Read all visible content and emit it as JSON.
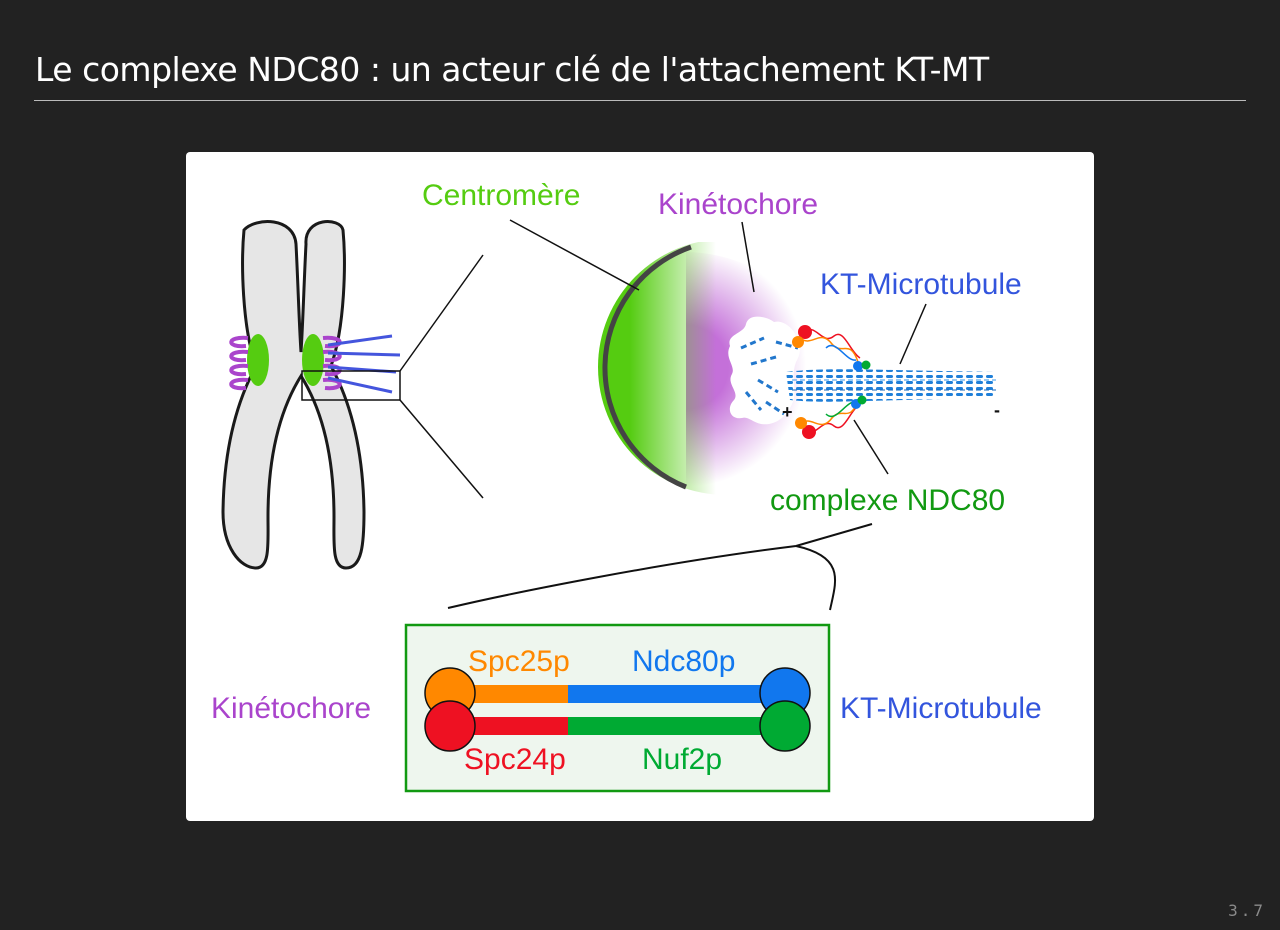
{
  "slide": {
    "title": "Le complexe NDC80 : un acteur clé de l'attachement KT-MT",
    "number": "3.7"
  },
  "diagram": {
    "labels": {
      "centromere": "Centromère",
      "kinetochore_top": "Kinétochore",
      "kt_microtubule_top": "KT-Microtubule",
      "ndc80_complex": "complexe NDC80",
      "plus_end": "+",
      "minus_end": "-",
      "kinetochore_bottom": "Kinétochore",
      "kt_microtubule_bottom": "KT-Microtubule"
    },
    "subunits": {
      "spc25p": "Spc25p",
      "ndc80p": "Ndc80p",
      "spc24p": "Spc24p",
      "nuf2p": "Nuf2p"
    },
    "colors": {
      "centromere_green": "#55cc11",
      "kinetochore_purple": "#aa44cc",
      "microtubule_blue": "#3355dd",
      "ndc80_label_green": "#119911",
      "spc25p_orange": "#ff8800",
      "ndc80p_blue": "#1177ee",
      "spc24p_red": "#ee1122",
      "nuf2p_green": "#00aa33",
      "chromosome_gray": "#e6e6e6"
    }
  }
}
